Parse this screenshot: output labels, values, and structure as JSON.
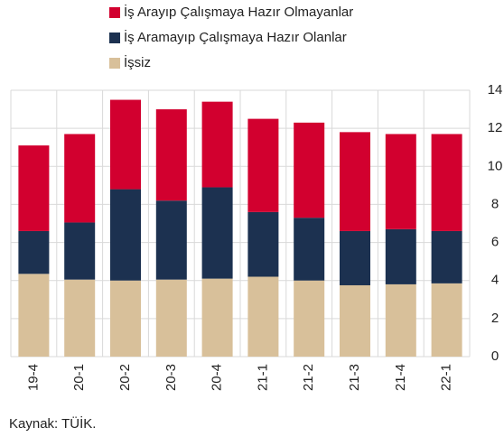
{
  "chart_data": {
    "type": "stacked_bar",
    "categories": [
      "19-4",
      "20-1",
      "20-2",
      "20-3",
      "20-4",
      "21-1",
      "21-2",
      "21-3",
      "21-4",
      "22-1"
    ],
    "series": [
      {
        "name": "İşsiz",
        "color": "#d8c09a",
        "values": [
          4.35,
          4.05,
          4.0,
          4.05,
          4.1,
          4.2,
          4.0,
          3.75,
          3.8,
          3.85
        ]
      },
      {
        "name": "İş Aramayıp Çalışmaya Hazır Olanlar",
        "color": "#1c3150",
        "values": [
          2.25,
          3.0,
          4.8,
          4.15,
          4.8,
          3.4,
          3.3,
          2.85,
          2.9,
          2.75
        ]
      },
      {
        "name": "İş Arayıp Çalışmaya Hazır Olmayanlar",
        "color": "#d2002f",
        "values": [
          4.5,
          4.65,
          4.7,
          4.8,
          4.5,
          4.9,
          5.0,
          5.2,
          5.0,
          5.1
        ]
      }
    ],
    "ylim": [
      0,
      14
    ],
    "yticks": [
      0,
      2,
      4,
      6,
      8,
      10,
      12,
      14
    ],
    "grid": true,
    "source": "Kaynak: TÜİK."
  }
}
